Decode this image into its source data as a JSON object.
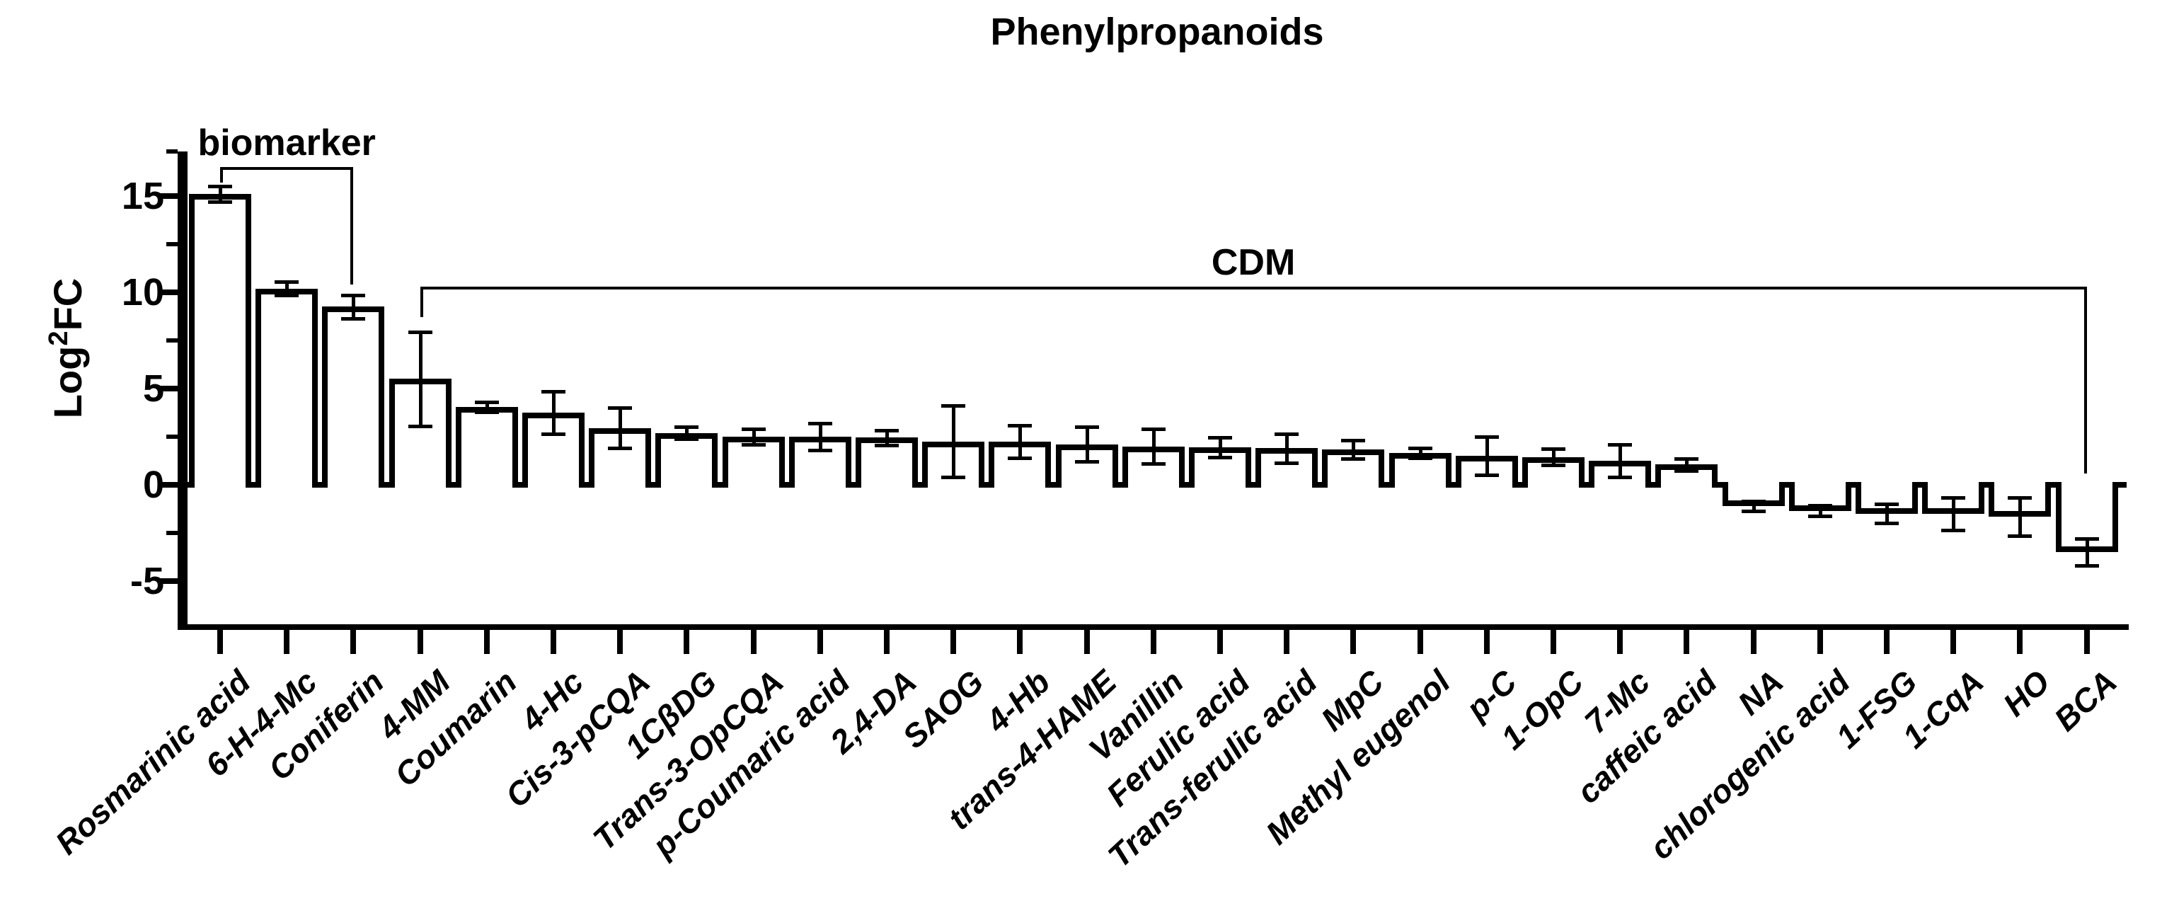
{
  "title": "Phenylpropanoids",
  "ylabel": {
    "base": "Log",
    "sup": "2",
    "rest": "FC"
  },
  "chart_data": {
    "type": "bar",
    "title": "Phenylpropanoids",
    "ylabel": "Log2FC",
    "xlabel": "",
    "grid": false,
    "legend_position": "none",
    "bar_fill": "#ffffff",
    "bar_border": "#000000",
    "ylim": [
      -7.4,
      17.3
    ],
    "yticks_major": [
      15,
      10,
      5,
      0,
      -5
    ],
    "yticks_minor": [
      17.3,
      12.5,
      7.5,
      2.5,
      -2.5
    ],
    "categories": [
      "Rosmarinic acid",
      "6-H-4-Mc",
      "Coniferin",
      "4-MM",
      "Coumarin",
      "4-Hc",
      "Cis-3-pCQA",
      "1CβDG",
      "Trans-3-OpCQA",
      "p-Coumaric acid",
      "2,4-DA",
      "SAOG",
      "4-Hb",
      "trans-4-HAME",
      "Vanillin",
      "Ferulic acid",
      "Trans-ferulic acid",
      "MpC",
      "Methyl eugenol",
      "p-C",
      "1-OpC",
      "7-Mc",
      "caffeic acid",
      "NA",
      "chlorogenic acid",
      "1-FSG",
      "1-CqA",
      "HO",
      "BCA"
    ],
    "values": [
      15.1,
      10.2,
      9.25,
      5.5,
      4.05,
      3.75,
      2.95,
      2.7,
      2.5,
      2.5,
      2.45,
      2.25,
      2.25,
      2.1,
      2.0,
      1.95,
      1.9,
      1.85,
      1.65,
      1.5,
      1.45,
      1.25,
      1.05,
      -1.1,
      -1.35,
      -1.5,
      -1.5,
      -1.65,
      -3.5
    ],
    "errors": [
      0.4,
      0.35,
      0.6,
      2.45,
      0.25,
      1.1,
      1.05,
      0.3,
      0.4,
      0.7,
      0.38,
      1.85,
      0.85,
      0.9,
      0.9,
      0.5,
      0.75,
      0.48,
      0.26,
      1.0,
      0.42,
      0.85,
      0.3,
      0.25,
      0.28,
      0.5,
      0.85,
      1.0,
      0.7
    ],
    "annotations": [
      {
        "label": "biomarker",
        "from_index": 0,
        "to_index": 2,
        "line_y": 16.5,
        "left_drop_y": 15.7,
        "right_drop_y": 10.4
      },
      {
        "label": "CDM",
        "from_index": 3,
        "to_index": 28,
        "line_y": 10.3,
        "left_drop_y": 8.7,
        "right_drop_y": 0.6
      }
    ]
  }
}
